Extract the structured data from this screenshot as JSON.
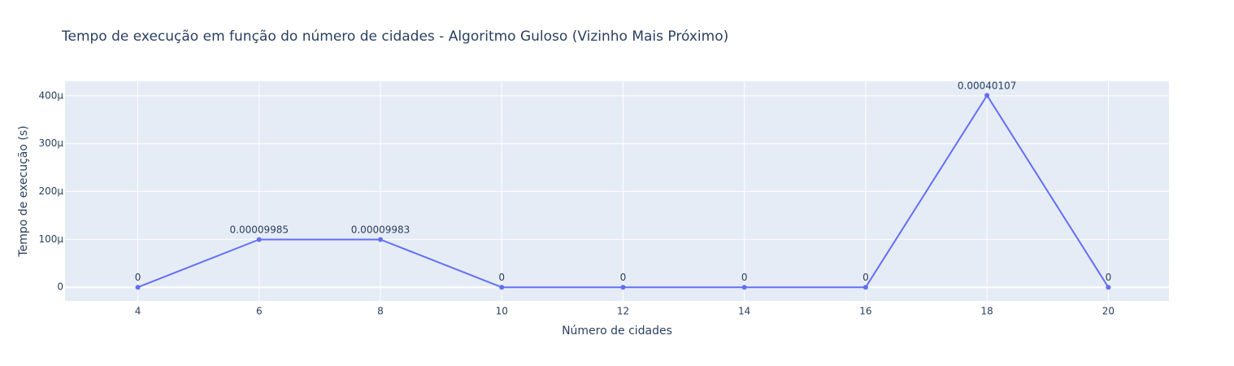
{
  "chart_data": {
    "type": "line",
    "title": "Tempo de execução em função do número de cidades - Algoritmo Guloso (Vizinho Mais Próximo)",
    "xlabel": "Número de cidades",
    "ylabel": "Tempo de execução (s)",
    "x": [
      4,
      6,
      8,
      10,
      12,
      14,
      16,
      18,
      20
    ],
    "y": [
      0,
      9.985e-05,
      9.983e-05,
      0,
      0,
      0,
      0,
      0.00040107,
      0
    ],
    "data_labels": [
      "0",
      "0.00009985",
      "0.00009983",
      "0",
      "0",
      "0",
      "0",
      "0.00040107",
      "0"
    ],
    "x_ticks": [
      "4",
      "6",
      "8",
      "10",
      "12",
      "14",
      "16",
      "18",
      "20"
    ],
    "y_ticks": [
      "0",
      "100μ",
      "200μ",
      "300μ",
      "400μ"
    ],
    "y_tick_values": [
      0,
      0.0001,
      0.0002,
      0.0003,
      0.0004
    ],
    "xlim": [
      2.8,
      21.0
    ],
    "ylim": [
      -2.85e-05,
      0.0004304
    ],
    "grid": true,
    "colors": {
      "line": "#636efa",
      "plot_bg": "#e5ecf6",
      "grid": "#ffffff",
      "text": "#2a3f5f"
    }
  }
}
